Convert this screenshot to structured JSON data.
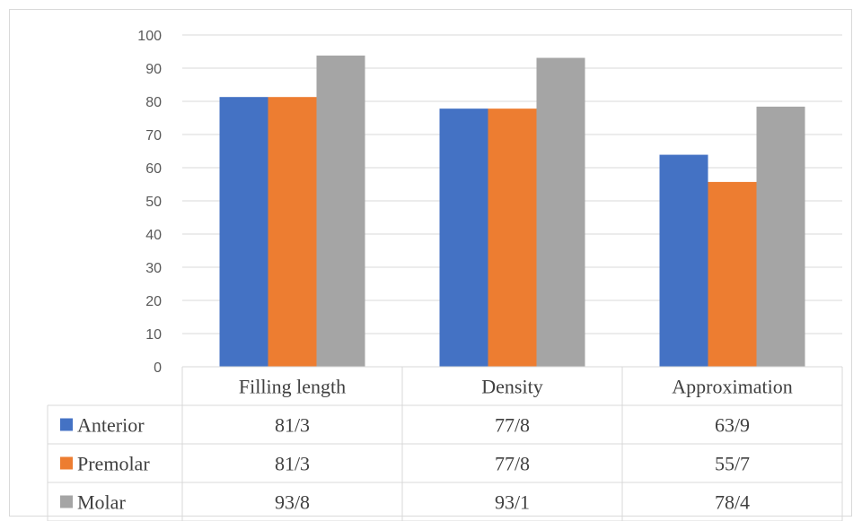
{
  "chart_data": {
    "type": "bar",
    "title": "",
    "xlabel": "",
    "ylabel": "",
    "ylim": [
      0,
      100
    ],
    "yticks": [
      0,
      10,
      20,
      30,
      40,
      50,
      60,
      70,
      80,
      90,
      100
    ],
    "grid": true,
    "legend": "table-rows",
    "categories": [
      "Filling length",
      "Density",
      "Approximation"
    ],
    "series": [
      {
        "name": "Anterior",
        "color": "#4472c4",
        "values": [
          81.3,
          77.8,
          63.9
        ],
        "labels": [
          "81/3",
          "77/8",
          "63/9"
        ]
      },
      {
        "name": "Premolar",
        "color": "#ed7d31",
        "values": [
          81.3,
          77.8,
          55.7
        ],
        "labels": [
          "81/3",
          "77/8",
          "55/7"
        ]
      },
      {
        "name": "Molar",
        "color": "#a5a5a5",
        "values": [
          93.8,
          93.1,
          78.4
        ],
        "labels": [
          "93/8",
          "93/1",
          "78/4"
        ]
      }
    ]
  }
}
